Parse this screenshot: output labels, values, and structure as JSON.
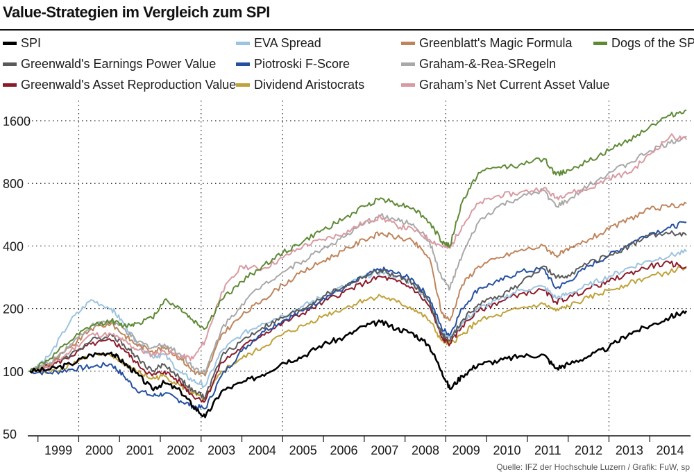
{
  "title": "Value-Strategien im Vergleich zum SPI",
  "source": "Quelle: IFZ der Hochschule Luzern / Grafik: FuW, sp",
  "chart_data": {
    "type": "line",
    "title": "Value-Strategien im Vergleich zum SPI",
    "xlabel": "",
    "ylabel": "",
    "yscale": "log",
    "ylim": [
      50,
      2000
    ],
    "xlim": [
      1998.75,
      2015.0
    ],
    "y_ticks": [
      50,
      100,
      200,
      400,
      800,
      1600
    ],
    "y_tick_labels": [
      "50",
      "100",
      "200",
      "400",
      "800",
      "1600"
    ],
    "x_tick_labels": [
      "1999",
      "2000",
      "2001",
      "2002",
      "2003",
      "2004",
      "2005",
      "2006",
      "2007",
      "2008",
      "2009",
      "2010",
      "2011",
      "2012",
      "2013",
      "2014"
    ],
    "legend_position": "top",
    "series": [
      {
        "name": "SPI",
        "color": "#000000",
        "x": [
          1998.8,
          1999.3,
          1999.8,
          2000.3,
          2000.8,
          2001.1,
          2001.4,
          2001.8,
          2002.1,
          2002.5,
          2002.8,
          2003.1,
          2003.5,
          2004.0,
          2004.5,
          2005.0,
          2005.5,
          2006.0,
          2006.5,
          2007.0,
          2007.4,
          2007.8,
          2008.2,
          2008.6,
          2008.9,
          2009.1,
          2009.4,
          2009.8,
          2010.3,
          2010.8,
          2011.4,
          2011.7,
          2012.0,
          2012.5,
          2013.0,
          2013.5,
          2014.0,
          2014.5,
          2014.9
        ],
        "values": [
          100,
          102,
          108,
          120,
          123,
          110,
          98,
          82,
          88,
          80,
          68,
          60,
          80,
          88,
          96,
          110,
          118,
          135,
          145,
          165,
          172,
          160,
          152,
          132,
          100,
          82,
          95,
          108,
          112,
          118,
          120,
          103,
          108,
          118,
          130,
          152,
          165,
          182,
          195
        ]
      },
      {
        "name": "Greenwald's Earnings Power Value",
        "color": "#5a5a5a",
        "x": [
          1998.8,
          1999.3,
          1999.8,
          2000.3,
          2000.8,
          2001.1,
          2001.4,
          2001.8,
          2002.1,
          2002.5,
          2002.8,
          2003.1,
          2003.5,
          2004.0,
          2004.5,
          2005.0,
          2005.5,
          2006.0,
          2006.5,
          2007.0,
          2007.4,
          2007.8,
          2008.2,
          2008.6,
          2008.9,
          2009.1,
          2009.4,
          2009.8,
          2010.3,
          2010.8,
          2011.4,
          2011.7,
          2012.0,
          2012.5,
          2013.0,
          2013.5,
          2014.0,
          2014.5,
          2014.9
        ],
        "values": [
          100,
          108,
          120,
          140,
          150,
          135,
          118,
          100,
          108,
          92,
          80,
          75,
          118,
          140,
          162,
          180,
          200,
          230,
          255,
          285,
          305,
          285,
          265,
          215,
          150,
          140,
          175,
          210,
          230,
          260,
          320,
          280,
          290,
          330,
          360,
          400,
          450,
          460,
          450
        ]
      },
      {
        "name": "Greenwald's Asset Reproduction Value",
        "color": "#8b1a2a",
        "x": [
          1998.8,
          1999.3,
          1999.8,
          2000.3,
          2000.8,
          2001.1,
          2001.4,
          2001.8,
          2002.1,
          2002.5,
          2002.8,
          2003.1,
          2003.5,
          2004.0,
          2004.5,
          2005.0,
          2005.5,
          2006.0,
          2006.5,
          2007.0,
          2007.4,
          2007.8,
          2008.2,
          2008.6,
          2008.9,
          2009.1,
          2009.4,
          2009.8,
          2010.3,
          2010.8,
          2011.4,
          2011.7,
          2012.0,
          2012.5,
          2013.0,
          2013.5,
          2014.0,
          2014.5,
          2014.9
        ],
        "values": [
          100,
          106,
          118,
          135,
          140,
          128,
          110,
          95,
          100,
          88,
          76,
          72,
          110,
          130,
          150,
          170,
          190,
          215,
          240,
          265,
          285,
          270,
          250,
          205,
          145,
          135,
          165,
          195,
          215,
          235,
          245,
          215,
          225,
          250,
          270,
          295,
          320,
          330,
          315
        ]
      },
      {
        "name": "EVA Spread",
        "color": "#9cc3e0",
        "x": [
          1998.8,
          1999.3,
          1999.8,
          2000.3,
          2000.8,
          2001.1,
          2001.4,
          2001.8,
          2002.1,
          2002.5,
          2002.8,
          2003.1,
          2003.5,
          2004.0,
          2004.5,
          2005.0,
          2005.5,
          2006.0,
          2006.5,
          2007.0,
          2007.4,
          2007.8,
          2008.2,
          2008.6,
          2008.9,
          2009.1,
          2009.4,
          2009.8,
          2010.3,
          2010.8,
          2011.4,
          2011.7,
          2012.0,
          2012.5,
          2013.0,
          2013.5,
          2014.0,
          2014.5,
          2014.9
        ],
        "values": [
          100,
          120,
          175,
          220,
          200,
          170,
          140,
          118,
          120,
          98,
          90,
          85,
          125,
          150,
          170,
          185,
          205,
          230,
          255,
          285,
          300,
          285,
          265,
          215,
          155,
          145,
          170,
          200,
          220,
          245,
          255,
          225,
          235,
          260,
          285,
          315,
          340,
          360,
          375
        ]
      },
      {
        "name": "Piotroski F-Score",
        "color": "#2450a0",
        "x": [
          1998.8,
          1999.3,
          1999.8,
          2000.3,
          2000.8,
          2001.1,
          2001.4,
          2001.8,
          2002.1,
          2002.5,
          2002.8,
          2003.1,
          2003.5,
          2004.0,
          2004.5,
          2005.0,
          2005.5,
          2006.0,
          2006.5,
          2007.0,
          2007.4,
          2007.8,
          2008.2,
          2008.6,
          2008.9,
          2009.1,
          2009.4,
          2009.8,
          2010.3,
          2010.8,
          2011.4,
          2011.7,
          2012.0,
          2012.5,
          2013.0,
          2013.5,
          2014.0,
          2014.5,
          2014.9
        ],
        "values": [
          100,
          98,
          102,
          105,
          108,
          95,
          82,
          76,
          78,
          72,
          68,
          66,
          95,
          125,
          155,
          175,
          195,
          225,
          250,
          285,
          310,
          295,
          275,
          225,
          160,
          150,
          200,
          250,
          270,
          300,
          310,
          250,
          270,
          320,
          360,
          410,
          460,
          490,
          520
        ]
      },
      {
        "name": "Dividend Aristocrats",
        "color": "#bfa23a",
        "x": [
          1998.8,
          1999.3,
          1999.8,
          2000.3,
          2000.8,
          2001.1,
          2001.4,
          2001.8,
          2002.1,
          2002.5,
          2002.8,
          2003.1,
          2003.5,
          2004.0,
          2004.5,
          2005.0,
          2005.5,
          2006.0,
          2006.5,
          2007.0,
          2007.4,
          2007.8,
          2008.2,
          2008.6,
          2008.9,
          2009.1,
          2009.4,
          2009.8,
          2010.3,
          2010.8,
          2011.4,
          2011.7,
          2012.0,
          2012.5,
          2013.0,
          2013.5,
          2014.0,
          2014.5,
          2014.9
        ],
        "values": [
          100,
          98,
          108,
          120,
          118,
          110,
          100,
          92,
          95,
          85,
          78,
          73,
          100,
          115,
          130,
          150,
          165,
          185,
          200,
          220,
          230,
          215,
          200,
          175,
          140,
          135,
          150,
          175,
          185,
          200,
          210,
          195,
          205,
          225,
          245,
          265,
          285,
          300,
          320
        ]
      },
      {
        "name": "Greenblatt's Magic Formula",
        "color": "#c0845a",
        "x": [
          1998.8,
          1999.3,
          1999.8,
          2000.3,
          2000.8,
          2001.1,
          2001.4,
          2001.8,
          2002.1,
          2002.5,
          2002.8,
          2003.1,
          2003.5,
          2004.0,
          2004.5,
          2005.0,
          2005.5,
          2006.0,
          2006.5,
          2007.0,
          2007.4,
          2007.8,
          2008.2,
          2008.6,
          2008.9,
          2009.1,
          2009.4,
          2009.8,
          2010.3,
          2010.8,
          2011.4,
          2011.7,
          2012.0,
          2012.5,
          2013.0,
          2013.5,
          2014.0,
          2014.5,
          2014.9
        ],
        "values": [
          100,
          108,
          130,
          160,
          170,
          150,
          135,
          125,
          130,
          115,
          100,
          95,
          150,
          185,
          220,
          260,
          300,
          340,
          380,
          430,
          460,
          440,
          420,
          350,
          190,
          175,
          260,
          320,
          350,
          380,
          400,
          360,
          380,
          430,
          480,
          540,
          600,
          620,
          640
        ]
      },
      {
        "name": "Graham-&-Rea-SRegeln",
        "color": "#a8a8a8",
        "x": [
          1998.8,
          1999.3,
          1999.8,
          2000.3,
          2000.8,
          2001.1,
          2001.4,
          2001.8,
          2002.1,
          2002.5,
          2002.8,
          2003.1,
          2003.5,
          2004.0,
          2004.5,
          2005.0,
          2005.5,
          2006.0,
          2006.5,
          2007.0,
          2007.4,
          2007.8,
          2008.2,
          2008.6,
          2008.9,
          2009.1,
          2009.4,
          2009.8,
          2010.3,
          2010.8,
          2011.4,
          2011.7,
          2012.0,
          2012.5,
          2013.0,
          2013.5,
          2014.0,
          2014.5,
          2014.9
        ],
        "values": [
          100,
          110,
          135,
          165,
          175,
          160,
          140,
          130,
          135,
          120,
          105,
          98,
          160,
          210,
          260,
          300,
          340,
          390,
          440,
          510,
          560,
          530,
          510,
          420,
          280,
          250,
          360,
          520,
          620,
          680,
          740,
          620,
          660,
          780,
          900,
          1000,
          1150,
          1250,
          1350
        ]
      },
      {
        "name": "Graham’s Net Current  Asset Value",
        "color": "#d99aa2",
        "x": [
          1998.8,
          1999.3,
          1999.8,
          2000.3,
          2000.8,
          2001.1,
          2001.4,
          2001.8,
          2002.1,
          2002.5,
          2002.8,
          2003.1,
          2003.5,
          2004.0,
          2004.5,
          2005.0,
          2005.5,
          2006.0,
          2006.5,
          2007.0,
          2007.4,
          2007.8,
          2008.2,
          2008.6,
          2008.9,
          2009.1,
          2009.4,
          2009.8,
          2010.3,
          2010.8,
          2011.4,
          2011.7,
          2012.0,
          2012.5,
          2013.0,
          2013.5,
          2014.0,
          2014.5,
          2014.9
        ],
        "values": [
          100,
          105,
          125,
          150,
          150,
          140,
          128,
          120,
          125,
          118,
          115,
          140,
          240,
          320,
          310,
          350,
          400,
          430,
          460,
          520,
          550,
          500,
          480,
          430,
          400,
          390,
          500,
          640,
          700,
          720,
          760,
          680,
          720,
          750,
          850,
          900,
          1100,
          1350,
          1300
        ]
      },
      {
        "name": "Dogs of  the SPI",
        "color": "#5e8a35",
        "x": [
          1998.8,
          1999.3,
          1999.8,
          2000.3,
          2000.8,
          2001.1,
          2001.4,
          2001.8,
          2002.1,
          2002.5,
          2002.8,
          2003.1,
          2003.5,
          2004.0,
          2004.5,
          2005.0,
          2005.5,
          2006.0,
          2006.5,
          2007.0,
          2007.4,
          2007.8,
          2008.2,
          2008.6,
          2008.9,
          2009.1,
          2009.4,
          2009.8,
          2010.3,
          2010.8,
          2011.4,
          2011.7,
          2012.0,
          2012.5,
          2013.0,
          2013.5,
          2014.0,
          2014.5,
          2014.9
        ],
        "values": [
          100,
          115,
          140,
          165,
          175,
          165,
          170,
          180,
          220,
          200,
          175,
          160,
          220,
          270,
          320,
          370,
          420,
          480,
          540,
          620,
          680,
          640,
          610,
          520,
          420,
          400,
          650,
          900,
          960,
          980,
          1050,
          880,
          930,
          1020,
          1150,
          1300,
          1500,
          1700,
          1800
        ]
      }
    ]
  },
  "legend_columns": [
    [
      "SPI",
      "Greenwald's Earnings Power Value",
      "Greenwald's Asset Reproduction Value"
    ],
    [
      "EVA Spread",
      "Piotroski F-Score",
      "Dividend Aristocrats"
    ],
    [
      "Greenblatt's Magic Formula",
      "Graham-&-Rea-SRegeln",
      "Graham’s Net Current  Asset Value"
    ],
    [
      "Dogs of  the SPI"
    ]
  ]
}
